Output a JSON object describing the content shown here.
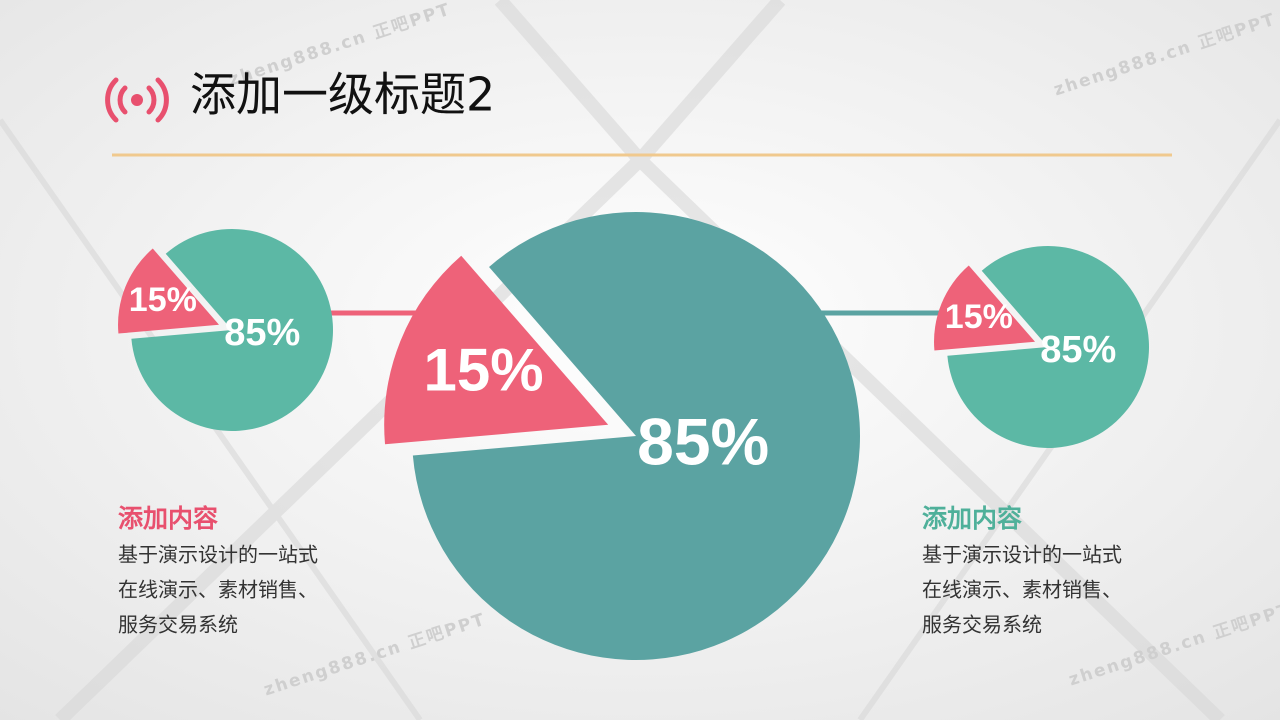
{
  "header": {
    "title": "添加一级标题2"
  },
  "chart_data": [
    {
      "type": "pie",
      "values": [
        15,
        85
      ],
      "value_labels": [
        "15%",
        "85%"
      ],
      "colors": [
        "#ee6279",
        "#5cb8a5"
      ]
    },
    {
      "type": "pie",
      "values": [
        15,
        85
      ],
      "value_labels": [
        "15%",
        "85%"
      ],
      "colors": [
        "#ee6279",
        "#5ba3a2"
      ]
    },
    {
      "type": "pie",
      "values": [
        15,
        85
      ],
      "value_labels": [
        "15%",
        "85%"
      ],
      "colors": [
        "#ee6279",
        "#5cb8a5"
      ]
    }
  ],
  "blocks": [
    {
      "heading": "添加内容",
      "lines": [
        "基于演示设计的一站式",
        "在线演示、素材销售、",
        "服务交易系统"
      ]
    },
    {
      "heading": "添加内容",
      "lines": [
        "基于演示设计的一站式",
        "在线演示、素材销售、",
        "服务交易系统"
      ]
    }
  ],
  "watermarks": [
    "zheng888.cn 正吧PPT",
    "zheng888.cn 正吧PPT",
    "zheng888.cn 正吧PPT",
    "zheng888.cn 正吧PPT"
  ]
}
